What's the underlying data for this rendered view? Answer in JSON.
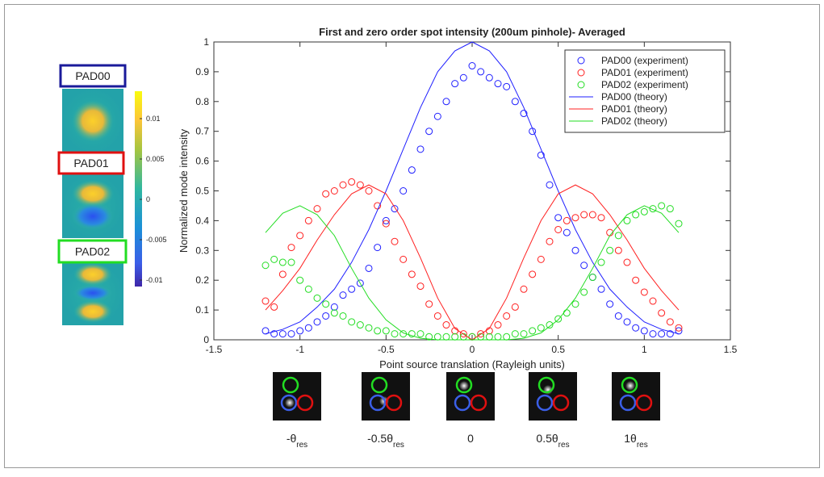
{
  "chart_data": {
    "type": "scatter-line",
    "title": "First and zero order spot intensity (200um pinhole)- Averaged",
    "x_label": "Point source translation (Rayleigh units)",
    "y_label": "Normalized mode intensity",
    "xlim": [
      -1.5,
      1.5
    ],
    "ylim": [
      0,
      1
    ],
    "xticks": [
      -1.5,
      -1,
      -0.5,
      0,
      0.5,
      1,
      1.5
    ],
    "yticks": [
      0,
      0.1,
      0.2,
      0.3,
      0.4,
      0.5,
      0.6,
      0.7,
      0.8,
      0.9,
      1
    ],
    "grid": false,
    "legend": "upper right",
    "series": [
      {
        "name": "PAD00 (experiment)",
        "color": "#1f1fff",
        "style": "marker",
        "x": [
          -1.2,
          -1.15,
          -1.1,
          -1.05,
          -1,
          -0.95,
          -0.9,
          -0.85,
          -0.8,
          -0.75,
          -0.7,
          -0.65,
          -0.6,
          -0.55,
          -0.5,
          -0.45,
          -0.4,
          -0.35,
          -0.3,
          -0.25,
          -0.2,
          -0.15,
          -0.1,
          -0.05,
          0,
          0.05,
          0.1,
          0.15,
          0.2,
          0.25,
          0.3,
          0.35,
          0.4,
          0.45,
          0.5,
          0.55,
          0.6,
          0.65,
          0.7,
          0.75,
          0.8,
          0.85,
          0.9,
          0.95,
          1,
          1.05,
          1.1,
          1.15,
          1.2
        ],
        "values": [
          0.03,
          0.02,
          0.02,
          0.02,
          0.03,
          0.04,
          0.06,
          0.08,
          0.11,
          0.15,
          0.17,
          0.19,
          0.24,
          0.31,
          0.4,
          0.44,
          0.5,
          0.57,
          0.64,
          0.7,
          0.75,
          0.8,
          0.86,
          0.88,
          0.92,
          0.9,
          0.88,
          0.86,
          0.85,
          0.8,
          0.76,
          0.7,
          0.62,
          0.52,
          0.41,
          0.36,
          0.3,
          0.25,
          0.21,
          0.17,
          0.12,
          0.08,
          0.06,
          0.04,
          0.03,
          0.02,
          0.02,
          0.02,
          0.03
        ]
      },
      {
        "name": "PAD01 (experiment)",
        "color": "#ff2020",
        "style": "marker",
        "x": [
          -1.2,
          -1.15,
          -1.1,
          -1.05,
          -1,
          -0.95,
          -0.9,
          -0.85,
          -0.8,
          -0.75,
          -0.7,
          -0.65,
          -0.6,
          -0.55,
          -0.5,
          -0.45,
          -0.4,
          -0.35,
          -0.3,
          -0.25,
          -0.2,
          -0.15,
          -0.1,
          -0.05,
          0,
          0.05,
          0.1,
          0.15,
          0.2,
          0.25,
          0.3,
          0.35,
          0.4,
          0.45,
          0.5,
          0.55,
          0.6,
          0.65,
          0.7,
          0.75,
          0.8,
          0.85,
          0.9,
          0.95,
          1,
          1.05,
          1.1,
          1.15,
          1.2
        ],
        "values": [
          0.13,
          0.11,
          0.22,
          0.31,
          0.35,
          0.4,
          0.44,
          0.49,
          0.5,
          0.52,
          0.53,
          0.52,
          0.5,
          0.45,
          0.39,
          0.33,
          0.27,
          0.22,
          0.18,
          0.12,
          0.08,
          0.05,
          0.03,
          0.02,
          0.01,
          0.02,
          0.03,
          0.05,
          0.08,
          0.11,
          0.17,
          0.22,
          0.27,
          0.33,
          0.37,
          0.4,
          0.41,
          0.42,
          0.42,
          0.41,
          0.36,
          0.3,
          0.26,
          0.2,
          0.16,
          0.13,
          0.09,
          0.06,
          0.04
        ]
      },
      {
        "name": "PAD02 (experiment)",
        "color": "#22dd22",
        "style": "marker",
        "x": [
          -1.2,
          -1.15,
          -1.1,
          -1.05,
          -1,
          -0.95,
          -0.9,
          -0.85,
          -0.8,
          -0.75,
          -0.7,
          -0.65,
          -0.6,
          -0.55,
          -0.5,
          -0.45,
          -0.4,
          -0.35,
          -0.3,
          -0.25,
          -0.2,
          -0.15,
          -0.1,
          -0.05,
          0,
          0.05,
          0.1,
          0.15,
          0.2,
          0.25,
          0.3,
          0.35,
          0.4,
          0.45,
          0.5,
          0.55,
          0.6,
          0.65,
          0.7,
          0.75,
          0.8,
          0.85,
          0.9,
          0.95,
          1,
          1.05,
          1.1,
          1.15,
          1.2
        ],
        "values": [
          0.25,
          0.27,
          0.26,
          0.26,
          0.2,
          0.17,
          0.14,
          0.12,
          0.09,
          0.08,
          0.06,
          0.05,
          0.04,
          0.03,
          0.03,
          0.02,
          0.02,
          0.02,
          0.02,
          0.01,
          0.01,
          0.01,
          0.01,
          0.01,
          0.01,
          0.01,
          0.01,
          0.01,
          0.01,
          0.02,
          0.02,
          0.03,
          0.04,
          0.05,
          0.07,
          0.09,
          0.12,
          0.16,
          0.21,
          0.26,
          0.3,
          0.35,
          0.4,
          0.42,
          0.43,
          0.44,
          0.45,
          0.44,
          0.39
        ]
      },
      {
        "name": "PAD00 (theory)",
        "color": "#1f1fff",
        "style": "line",
        "x": [
          -1.2,
          -1.1,
          -1,
          -0.9,
          -0.8,
          -0.7,
          -0.6,
          -0.5,
          -0.4,
          -0.3,
          -0.2,
          -0.1,
          0,
          0.1,
          0.2,
          0.3,
          0.4,
          0.5,
          0.6,
          0.7,
          0.8,
          0.9,
          1,
          1.1,
          1.2
        ],
        "values": [
          0.02,
          0.035,
          0.06,
          0.11,
          0.17,
          0.26,
          0.37,
          0.5,
          0.64,
          0.78,
          0.9,
          0.97,
          1,
          0.97,
          0.9,
          0.78,
          0.64,
          0.5,
          0.37,
          0.26,
          0.17,
          0.11,
          0.06,
          0.035,
          0.02
        ]
      },
      {
        "name": "PAD01 (theory)",
        "color": "#ff2020",
        "style": "line",
        "x": [
          -1.2,
          -1.1,
          -1,
          -0.9,
          -0.8,
          -0.7,
          -0.6,
          -0.5,
          -0.4,
          -0.3,
          -0.2,
          -0.1,
          0,
          0.1,
          0.2,
          0.3,
          0.4,
          0.5,
          0.6,
          0.7,
          0.8,
          0.9,
          1,
          1.1,
          1.2
        ],
        "values": [
          0.1,
          0.165,
          0.24,
          0.335,
          0.42,
          0.49,
          0.52,
          0.49,
          0.4,
          0.275,
          0.14,
          0.038,
          0,
          0.038,
          0.14,
          0.275,
          0.4,
          0.49,
          0.52,
          0.49,
          0.42,
          0.335,
          0.24,
          0.165,
          0.1
        ]
      },
      {
        "name": "PAD02 (theory)",
        "color": "#22dd22",
        "style": "line",
        "x": [
          -1.2,
          -1.1,
          -1,
          -0.9,
          -0.8,
          -0.7,
          -0.6,
          -0.5,
          -0.4,
          -0.3,
          -0.2,
          -0.1,
          0,
          0.1,
          0.2,
          0.3,
          0.4,
          0.5,
          0.6,
          0.7,
          0.8,
          0.9,
          1,
          1.1,
          1.2
        ],
        "values": [
          0.36,
          0.425,
          0.45,
          0.42,
          0.35,
          0.24,
          0.14,
          0.067,
          0.023,
          0.005,
          0,
          0,
          0,
          0,
          0,
          0.005,
          0.023,
          0.067,
          0.14,
          0.24,
          0.35,
          0.42,
          0.45,
          0.425,
          0.36
        ]
      }
    ]
  },
  "panels": [
    {
      "label": "PAD00",
      "color": "#1a1a9a"
    },
    {
      "label": "PAD01",
      "color": "#e01010"
    },
    {
      "label": "PAD02",
      "color": "#22dd22"
    }
  ],
  "colorbar": {
    "lim": [
      -0.0108,
      0.0134
    ],
    "ticks": [
      0.01,
      0.005,
      0,
      -0.005,
      -0.01
    ]
  },
  "thumbnails": [
    {
      "main": "-θ",
      "sub": "res"
    },
    {
      "main": "-0.5θ",
      "sub": "res"
    },
    {
      "main": "0"
    },
    {
      "main": "0.5θ",
      "sub": "res"
    },
    {
      "main": "1θ",
      "sub": "res"
    }
  ]
}
